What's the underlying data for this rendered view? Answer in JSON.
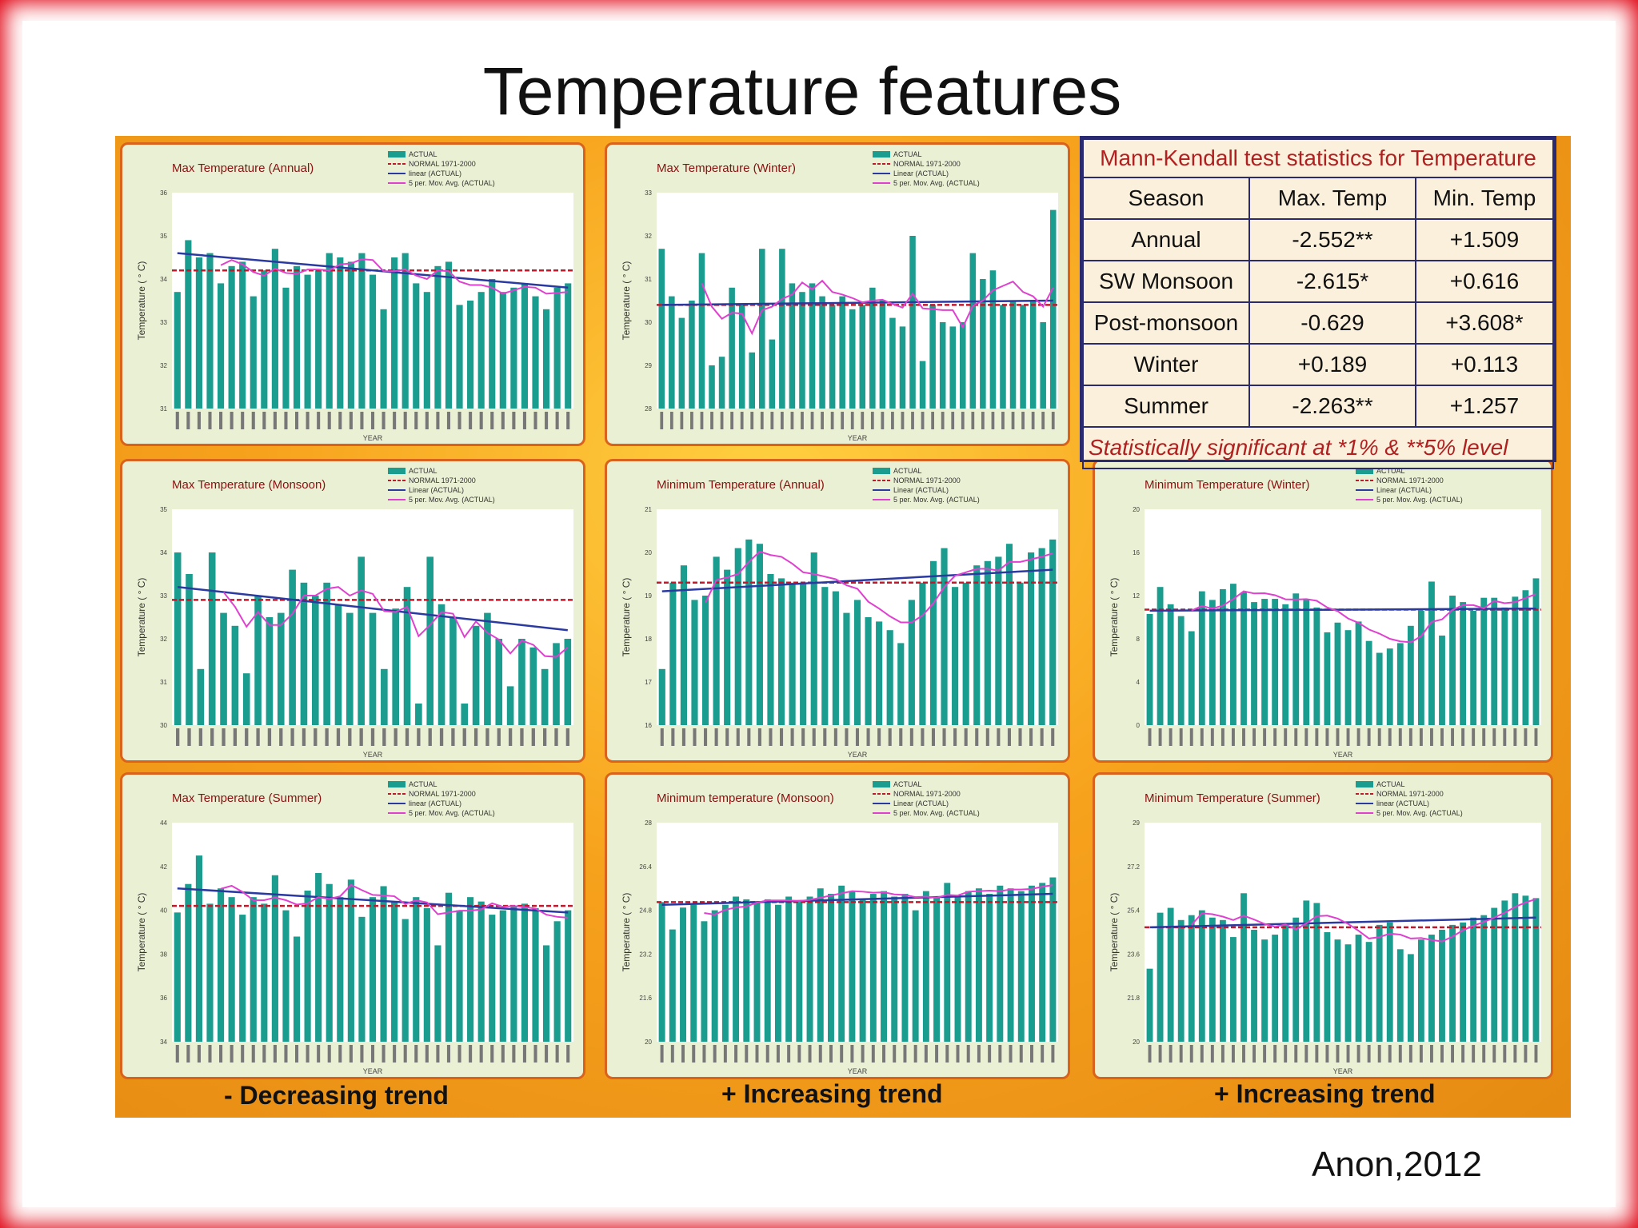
{
  "slide": {
    "title": "Temperature features",
    "citation": "Anon,2012"
  },
  "colors": {
    "frame": "#e00010",
    "panel_bg": "#f7a21d",
    "card_bg": "#eaf0d3",
    "card_border": "#d9631c",
    "bar": "#1a9c8e",
    "normal": "#c0192b",
    "linear": "#2a3aa0",
    "moving_avg": "#e040d0",
    "table_border": "#2a2a70",
    "table_red": "#b02020"
  },
  "trend_labels": {
    "col1": "-  Decreasing trend",
    "col2": "+ Increasing trend",
    "col3": "+ Increasing trend"
  },
  "mk_table": {
    "caption": "Mann-Kendall test statistics for Temperature",
    "headers": [
      "Season",
      "Max. Temp",
      "Min. Temp"
    ],
    "rows": [
      [
        "Annual",
        "-2.552**",
        "+1.509"
      ],
      [
        "SW Monsoon",
        "-2.615*",
        "+0.616"
      ],
      [
        "Post-monsoon",
        "-0.629",
        "+3.608*"
      ],
      [
        "Winter",
        "+0.189",
        "+0.113"
      ],
      [
        "Summer",
        "-2.263**",
        "+1.257"
      ]
    ],
    "footnote": "Statistically  significant at *1% & **5% level"
  },
  "chart_data": [
    {
      "type": "bar",
      "title": "Max Temperature (Annual)",
      "xlabel": "YEAR",
      "ylabel": "Temperature ( ° C)",
      "ylim": [
        31,
        36
      ],
      "legend": [
        "ACTUAL",
        "NORMAL 1971-2000",
        "linear (ACTUAL)",
        "5 per. Mov. Avg. (ACTUAL)"
      ],
      "normal": 34.2,
      "trend": [
        34.6,
        33.8
      ],
      "values": [
        33.7,
        34.9,
        34.5,
        34.6,
        33.9,
        34.3,
        34.4,
        33.6,
        34.2,
        34.7,
        33.8,
        34.3,
        34.1,
        34.2,
        34.6,
        34.5,
        34.4,
        34.6,
        34.1,
        33.3,
        34.5,
        34.6,
        33.9,
        33.7,
        34.3,
        34.4,
        33.4,
        33.5,
        33.7,
        34.0,
        33.7,
        33.8,
        33.9,
        33.6,
        33.3,
        33.8,
        33.9
      ]
    },
    {
      "type": "bar",
      "title": "Max Temperature (Winter)",
      "xlabel": "YEAR",
      "ylabel": "Temperature ( ° C)",
      "ylim": [
        28,
        33
      ],
      "legend": [
        "ACTUAL",
        "NORMAL 1971-2000",
        "Linear (ACTUAL)",
        "5 per. Mov. Avg. (ACTUAL)"
      ],
      "normal": 30.4,
      "trend": [
        30.4,
        30.5
      ],
      "values": [
        31.7,
        30.6,
        30.1,
        30.5,
        31.6,
        29.0,
        29.2,
        30.8,
        30.4,
        29.3,
        31.7,
        29.6,
        31.7,
        30.9,
        30.7,
        30.9,
        30.6,
        30.4,
        30.6,
        30.3,
        30.4,
        30.8,
        30.5,
        30.1,
        29.9,
        32.0,
        29.1,
        30.4,
        30.0,
        29.9,
        30.0,
        31.6,
        31.0,
        31.2,
        30.4,
        30.5,
        30.4,
        30.5,
        30.0,
        32.6
      ]
    },
    {
      "type": "bar",
      "title": "Max Temperature (Monsoon)",
      "xlabel": "YEAR",
      "ylabel": "Temperature ( ° C)",
      "ylim": [
        30,
        35
      ],
      "legend": [
        "ACTUAL",
        "NORMAL 1971-2000",
        "Linear (ACTUAL)",
        "5 per. Mov. Avg. (ACTUAL)"
      ],
      "normal": 32.9,
      "trend": [
        33.2,
        32.2
      ],
      "values": [
        34.0,
        33.5,
        31.3,
        34.0,
        32.6,
        32.3,
        31.2,
        33.0,
        32.5,
        32.6,
        33.6,
        33.3,
        33.0,
        33.3,
        32.8,
        32.6,
        33.9,
        32.6,
        31.3,
        32.7,
        33.2,
        30.5,
        33.9,
        32.8,
        32.5,
        30.5,
        32.3,
        32.6,
        32.0,
        30.9,
        32.0,
        31.8,
        31.3,
        31.9,
        32.0
      ]
    },
    {
      "type": "bar",
      "title": "Minimum  Temperature (Annual)",
      "xlabel": "YEAR",
      "ylabel": "Temperature ( ° C)",
      "ylim": [
        16,
        21
      ],
      "legend": [
        "ACTUAL",
        "NORMAL 1971-2000",
        "Linear (ACTUAL)",
        "5 per. Mov. Avg. (ACTUAL)"
      ],
      "normal": 19.3,
      "trend": [
        19.1,
        19.6
      ],
      "values": [
        17.3,
        19.3,
        19.7,
        18.9,
        19.0,
        19.9,
        19.6,
        20.1,
        20.3,
        20.2,
        19.5,
        19.4,
        19.3,
        19.3,
        20.0,
        19.2,
        19.1,
        18.6,
        18.9,
        18.5,
        18.4,
        18.2,
        17.9,
        18.9,
        19.3,
        19.8,
        20.1,
        19.2,
        19.3,
        19.7,
        19.8,
        19.9,
        20.2,
        19.3,
        20.0,
        20.1,
        20.3
      ]
    },
    {
      "type": "bar",
      "title": "Minimum Temperature (Winter)",
      "xlabel": "YEAR",
      "ylabel": "Temperature ( ° C)",
      "ylim": [
        0,
        20
      ],
      "legend": [
        "ACTUAL",
        "NORMAL 1971-2000",
        "Linear (ACTUAL)",
        "5 per. Mov. Avg. (ACTUAL)"
      ],
      "normal": 10.7,
      "trend": [
        10.6,
        10.8
      ],
      "values": [
        10.3,
        12.8,
        11.2,
        10.1,
        8.7,
        12.4,
        11.6,
        12.6,
        13.1,
        12.3,
        11.4,
        11.7,
        11.7,
        11.2,
        12.2,
        11.6,
        10.9,
        8.6,
        9.5,
        8.8,
        9.6,
        7.8,
        6.7,
        7.1,
        7.6,
        9.2,
        10.6,
        13.3,
        8.3,
        12.0,
        11.4,
        10.6,
        11.8,
        11.8,
        10.9,
        11.9,
        12.5,
        13.6
      ]
    },
    {
      "type": "bar",
      "title": "Max Temperature (Summer)",
      "xlabel": "YEAR",
      "ylabel": "Temperature ( ° C)",
      "ylim": [
        34,
        44
      ],
      "legend": [
        "ACTUAL",
        "NORMAL 1971-2000",
        "linear (ACTUAL)",
        "5 per. Mov. Avg. (ACTUAL)"
      ],
      "normal": 40.2,
      "trend": [
        41.0,
        39.9
      ],
      "values": [
        39.9,
        41.2,
        42.5,
        40.3,
        41.0,
        40.6,
        39.8,
        40.6,
        40.3,
        41.6,
        40.0,
        38.8,
        40.9,
        41.7,
        41.2,
        40.6,
        41.4,
        39.7,
        40.6,
        41.1,
        40.4,
        39.6,
        40.6,
        40.1,
        38.4,
        40.8,
        40.0,
        40.6,
        40.4,
        39.8,
        40.0,
        40.2,
        40.3,
        40.1,
        38.4,
        39.5,
        40.0
      ]
    },
    {
      "type": "bar",
      "title": "Minimum temperature (Monsoon)",
      "xlabel": "YEAR",
      "ylabel": "Temperature ( ° C)",
      "ylim": [
        20,
        28
      ],
      "legend": [
        "ACTUAL",
        "NORMAL 1971-2000",
        "Linear (ACTUAL)",
        "5 per. Mov. Avg. (ACTUAL)"
      ],
      "normal": 25.1,
      "trend": [
        25.0,
        25.4
      ],
      "values": [
        25.1,
        24.1,
        24.9,
        25.0,
        24.4,
        24.8,
        25.0,
        25.3,
        25.2,
        25.1,
        25.2,
        25.0,
        25.3,
        25.1,
        25.3,
        25.6,
        25.4,
        25.7,
        25.5,
        25.2,
        25.4,
        25.5,
        25.3,
        25.4,
        24.8,
        25.5,
        25.3,
        25.8,
        25.3,
        25.5,
        25.6,
        25.4,
        25.7,
        25.6,
        25.5,
        25.7,
        25.8,
        26.0
      ]
    },
    {
      "type": "bar",
      "title": "Minimum Temperature (Summer)",
      "xlabel": "YEAR",
      "ylabel": "Temperature ( ° C)",
      "ylim": [
        20,
        29
      ],
      "legend": [
        "ACTUAL",
        "NORMAL 1971-2000",
        "linear (ACTUAL)",
        "5 per. Mov. Avg. (ACTUAL)"
      ],
      "normal": 24.7,
      "trend": [
        24.7,
        25.1
      ],
      "values": [
        23.0,
        25.3,
        25.5,
        25.0,
        25.2,
        25.4,
        25.1,
        25.0,
        24.3,
        26.1,
        24.6,
        24.2,
        24.4,
        24.8,
        25.1,
        25.8,
        25.7,
        24.5,
        24.2,
        24.0,
        24.4,
        24.1,
        24.8,
        24.9,
        23.8,
        23.6,
        24.2,
        24.4,
        24.6,
        24.8,
        24.9,
        25.1,
        25.2,
        25.5,
        25.8,
        26.1,
        26.0,
        25.9
      ]
    }
  ]
}
